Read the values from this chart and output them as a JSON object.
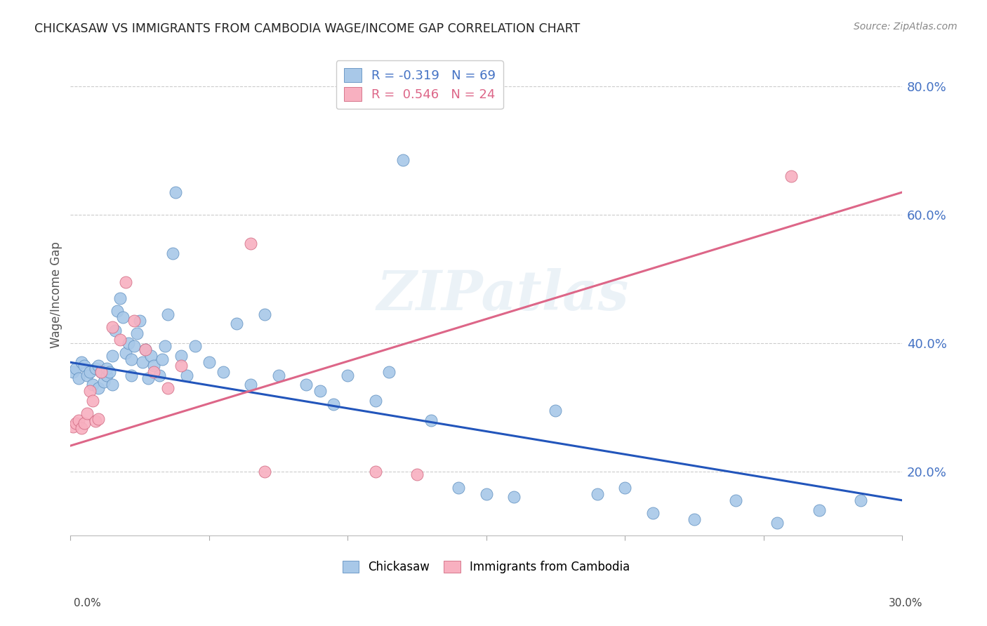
{
  "title": "CHICKASAW VS IMMIGRANTS FROM CAMBODIA WAGE/INCOME GAP CORRELATION CHART",
  "source": "Source: ZipAtlas.com",
  "ylabel": "Wage/Income Gap",
  "watermark": "ZIPatlas",
  "legend_r1": "R = -0.319   N = 69",
  "legend_r2": "R =  0.546   N = 24",
  "legend_label1": "Chickasaw",
  "legend_label2": "Immigrants from Cambodia",
  "blue_color": "#a8c8e8",
  "pink_color": "#f8b0c0",
  "blue_edge_color": "#6090c0",
  "pink_edge_color": "#d06880",
  "blue_line_color": "#2255bb",
  "pink_line_color": "#dd6688",
  "ytick_labels": [
    "20.0%",
    "40.0%",
    "60.0%",
    "80.0%"
  ],
  "ytick_values": [
    0.2,
    0.4,
    0.6,
    0.8
  ],
  "xmin": 0.0,
  "xmax": 0.3,
  "ymin": 0.1,
  "ymax": 0.85,
  "blue_line_x0": 0.0,
  "blue_line_x1": 0.3,
  "blue_line_y0": 0.37,
  "blue_line_y1": 0.155,
  "pink_line_x0": 0.0,
  "pink_line_x1": 0.3,
  "pink_line_y0": 0.24,
  "pink_line_y1": 0.635,
  "blue_scatter_x": [
    0.001,
    0.002,
    0.003,
    0.004,
    0.005,
    0.006,
    0.007,
    0.008,
    0.009,
    0.01,
    0.01,
    0.011,
    0.012,
    0.013,
    0.013,
    0.014,
    0.015,
    0.015,
    0.016,
    0.017,
    0.018,
    0.019,
    0.02,
    0.021,
    0.022,
    0.022,
    0.023,
    0.024,
    0.025,
    0.026,
    0.027,
    0.028,
    0.029,
    0.03,
    0.032,
    0.033,
    0.034,
    0.035,
    0.037,
    0.038,
    0.04,
    0.042,
    0.045,
    0.05,
    0.055,
    0.06,
    0.065,
    0.07,
    0.075,
    0.085,
    0.09,
    0.095,
    0.1,
    0.11,
    0.115,
    0.12,
    0.13,
    0.14,
    0.15,
    0.16,
    0.175,
    0.19,
    0.2,
    0.21,
    0.225,
    0.24,
    0.255,
    0.27,
    0.285
  ],
  "blue_scatter_y": [
    0.355,
    0.36,
    0.345,
    0.37,
    0.365,
    0.35,
    0.355,
    0.335,
    0.36,
    0.365,
    0.33,
    0.355,
    0.34,
    0.35,
    0.36,
    0.355,
    0.335,
    0.38,
    0.42,
    0.45,
    0.47,
    0.44,
    0.385,
    0.4,
    0.35,
    0.375,
    0.395,
    0.415,
    0.435,
    0.37,
    0.39,
    0.345,
    0.38,
    0.365,
    0.35,
    0.375,
    0.395,
    0.445,
    0.54,
    0.635,
    0.38,
    0.35,
    0.395,
    0.37,
    0.355,
    0.43,
    0.335,
    0.445,
    0.35,
    0.335,
    0.325,
    0.305,
    0.35,
    0.31,
    0.355,
    0.685,
    0.28,
    0.175,
    0.165,
    0.16,
    0.295,
    0.165,
    0.175,
    0.135,
    0.125,
    0.155,
    0.12,
    0.14,
    0.155
  ],
  "pink_scatter_x": [
    0.001,
    0.002,
    0.003,
    0.004,
    0.005,
    0.006,
    0.007,
    0.008,
    0.009,
    0.01,
    0.011,
    0.015,
    0.018,
    0.02,
    0.023,
    0.027,
    0.03,
    0.035,
    0.04,
    0.065,
    0.07,
    0.11,
    0.125,
    0.26
  ],
  "pink_scatter_y": [
    0.27,
    0.275,
    0.28,
    0.268,
    0.275,
    0.29,
    0.325,
    0.31,
    0.278,
    0.282,
    0.355,
    0.425,
    0.405,
    0.495,
    0.435,
    0.39,
    0.355,
    0.33,
    0.365,
    0.555,
    0.2,
    0.2,
    0.195,
    0.66
  ]
}
